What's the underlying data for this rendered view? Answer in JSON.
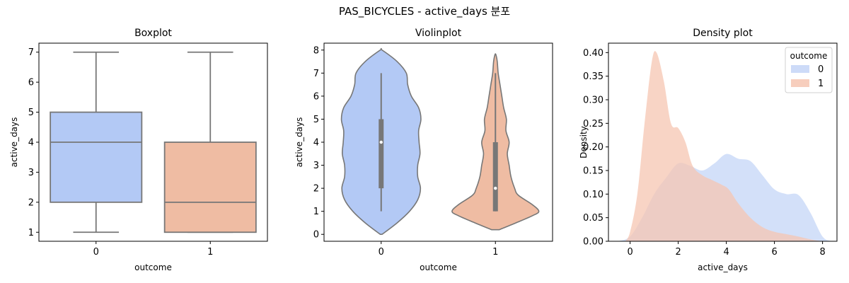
{
  "figure": {
    "suptitle": "PAS_BICYCLES - active_days 분포"
  },
  "colors": {
    "outcome_0": "#b3c9f5",
    "outcome_1": "#efbca3",
    "density_0": "#c4d5f7",
    "density_1": "#f6c6b2",
    "line": "#777777"
  },
  "chart_data": [
    {
      "type": "boxplot",
      "title": "Boxplot",
      "xlabel": "outcome",
      "ylabel": "active_days",
      "categories": [
        "0",
        "1"
      ],
      "ylim": [
        0.7,
        7.3
      ],
      "yticks": [
        1,
        2,
        3,
        4,
        5,
        6,
        7
      ],
      "boxes": [
        {
          "category": "0",
          "min": 1,
          "q1": 2,
          "median": 4,
          "q3": 5,
          "max": 7
        },
        {
          "category": "1",
          "min": 1,
          "q1": 1,
          "median": 2,
          "q3": 4,
          "max": 7
        }
      ]
    },
    {
      "type": "violin",
      "title": "Violinplot",
      "xlabel": "outcome",
      "ylabel": "active_days",
      "categories": [
        "0",
        "1"
      ],
      "ylim": [
        -0.3,
        8.3
      ],
      "yticks": [
        0,
        1,
        2,
        3,
        4,
        5,
        6,
        7,
        8
      ],
      "violins": [
        {
          "category": "0",
          "range": [
            0,
            8
          ],
          "q1": 2,
          "median": 4,
          "q3": 5,
          "whisker_low": 1,
          "whisker_high": 7,
          "profile": [
            [
              0,
              0.02
            ],
            [
              0.5,
              0.35
            ],
            [
              1,
              0.62
            ],
            [
              1.5,
              0.8
            ],
            [
              2,
              0.86
            ],
            [
              2.5,
              0.8
            ],
            [
              3,
              0.8
            ],
            [
              3.5,
              0.85
            ],
            [
              4,
              0.83
            ],
            [
              4.5,
              0.82
            ],
            [
              5,
              0.87
            ],
            [
              5.5,
              0.82
            ],
            [
              6,
              0.66
            ],
            [
              6.5,
              0.58
            ],
            [
              7,
              0.55
            ],
            [
              7.5,
              0.35
            ],
            [
              8,
              0.02
            ]
          ]
        },
        {
          "category": "1",
          "range": [
            0.2,
            7.8
          ],
          "q1": 1,
          "median": 2,
          "q3": 4,
          "whisker_low": 1,
          "whisker_high": 7,
          "profile": [
            [
              0.2,
              0.08
            ],
            [
              0.5,
              0.45
            ],
            [
              0.8,
              0.8
            ],
            [
              1,
              0.95
            ],
            [
              1.3,
              0.8
            ],
            [
              1.7,
              0.5
            ],
            [
              2,
              0.42
            ],
            [
              2.5,
              0.34
            ],
            [
              3,
              0.3
            ],
            [
              3.5,
              0.26
            ],
            [
              4,
              0.3
            ],
            [
              4.5,
              0.23
            ],
            [
              5,
              0.24
            ],
            [
              5.5,
              0.18
            ],
            [
              6,
              0.14
            ],
            [
              6.5,
              0.1
            ],
            [
              7,
              0.06
            ],
            [
              7.5,
              0.04
            ],
            [
              7.8,
              0.01
            ]
          ]
        }
      ]
    },
    {
      "type": "area",
      "title": "Density plot",
      "xlabel": "active_days",
      "ylabel": "Density",
      "xlim": [
        -0.9,
        8.6
      ],
      "ylim": [
        0,
        0.42
      ],
      "xticks": [
        0,
        2,
        4,
        6,
        8
      ],
      "yticks": [
        0.0,
        0.05,
        0.1,
        0.15,
        0.2,
        0.25,
        0.3,
        0.35,
        0.4
      ],
      "ytick_labels": [
        "0.00",
        "0.05",
        "0.10",
        "0.15",
        "0.20",
        "0.25",
        "0.30",
        "0.35",
        "0.40"
      ],
      "legend": {
        "title": "outcome",
        "placement": "top-right",
        "entries": [
          "0",
          "1"
        ]
      },
      "series": [
        {
          "name": "0",
          "x": [
            -0.5,
            0,
            0.5,
            1,
            1.5,
            2,
            2.5,
            3,
            3.5,
            4,
            4.5,
            5,
            5.5,
            6,
            6.5,
            7,
            7.5,
            8,
            8.4
          ],
          "y": [
            0.0,
            0.01,
            0.05,
            0.1,
            0.135,
            0.165,
            0.16,
            0.15,
            0.165,
            0.185,
            0.175,
            0.17,
            0.14,
            0.11,
            0.1,
            0.098,
            0.06,
            0.01,
            0.0
          ]
        },
        {
          "name": "1",
          "x": [
            -0.2,
            0,
            0.3,
            0.6,
            0.9,
            1.1,
            1.4,
            1.7,
            2,
            2.3,
            2.6,
            3,
            3.4,
            3.8,
            4.1,
            4.5,
            5,
            5.5,
            6,
            6.5,
            7,
            7.5,
            8
          ],
          "y": [
            0.0,
            0.02,
            0.1,
            0.25,
            0.38,
            0.4,
            0.34,
            0.25,
            0.24,
            0.21,
            0.16,
            0.14,
            0.13,
            0.12,
            0.11,
            0.08,
            0.05,
            0.03,
            0.02,
            0.015,
            0.01,
            0.004,
            0.0
          ]
        }
      ]
    }
  ]
}
